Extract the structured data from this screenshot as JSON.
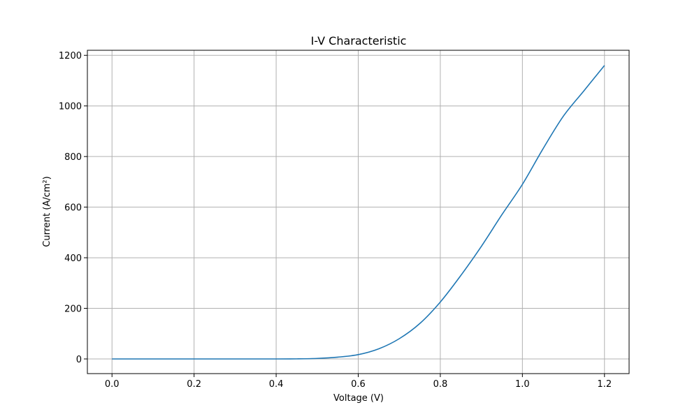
{
  "chart_data": {
    "type": "line",
    "title": "I-V Characteristic",
    "xlabel": "Voltage (V)",
    "ylabel": "Current (A/cm²)",
    "xlim": [
      -0.06,
      1.26
    ],
    "ylim": [
      -58,
      1220
    ],
    "grid": true,
    "x_ticks": [
      0.0,
      0.2,
      0.4,
      0.6,
      0.8,
      1.0,
      1.2
    ],
    "x_tick_labels": [
      "0.0",
      "0.2",
      "0.4",
      "0.6",
      "0.8",
      "1.0",
      "1.2"
    ],
    "y_ticks": [
      0,
      200,
      400,
      600,
      800,
      1000,
      1200
    ],
    "y_tick_labels": [
      "0",
      "200",
      "400",
      "600",
      "800",
      "1000",
      "1200"
    ],
    "series": [
      {
        "color": "#1f77b4",
        "x": [
          0.0,
          0.1,
          0.2,
          0.3,
          0.4,
          0.45,
          0.5,
          0.55,
          0.6,
          0.65,
          0.7,
          0.75,
          0.8,
          0.85,
          0.9,
          0.95,
          1.0,
          1.05,
          1.1,
          1.15,
          1.2
        ],
        "y": [
          0,
          0,
          0,
          0,
          0,
          0.3,
          2,
          7,
          17,
          40,
          80,
          140,
          225,
          330,
          445,
          570,
          690,
          830,
          960,
          1060,
          1160
        ]
      }
    ]
  }
}
